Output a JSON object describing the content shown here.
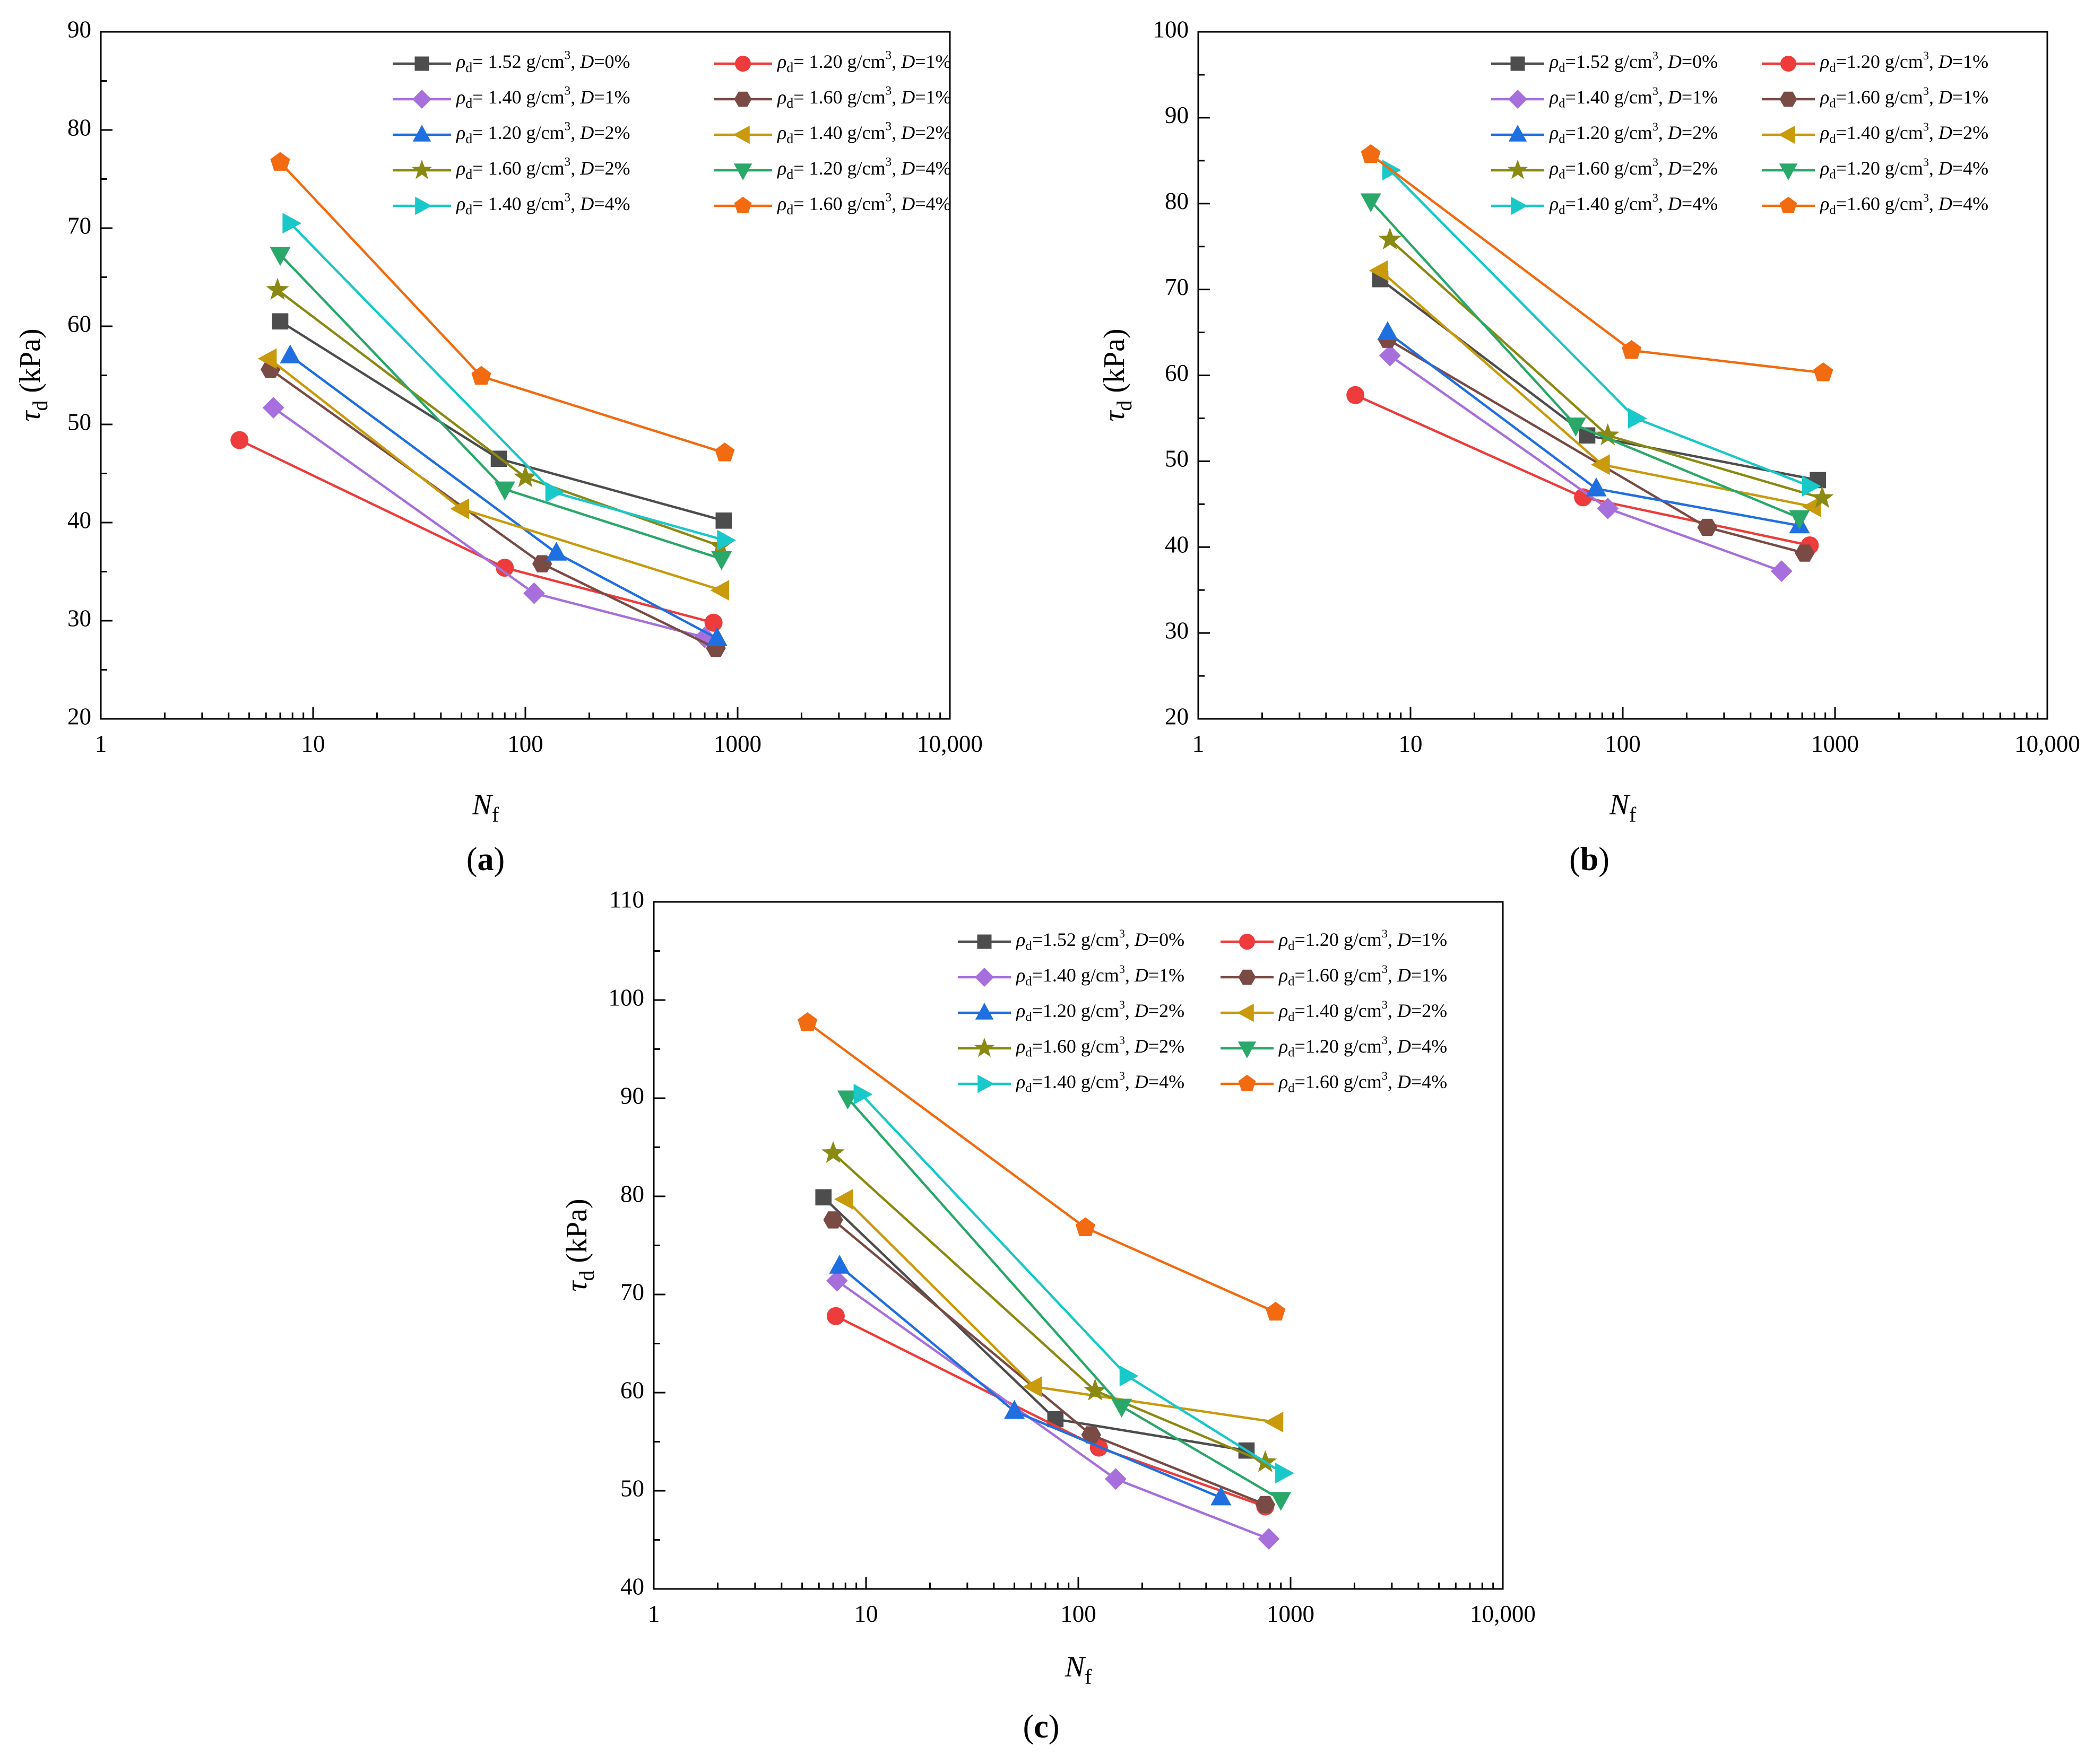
{
  "figure": {
    "legend_labels": [
      "ρd= 1.52 g/cm3, D=0%",
      "ρd= 1.20 g/cm3, D=1%",
      "ρd= 1.40 g/cm3, D=1%",
      "ρd= 1.60 g/cm3, D=1%",
      "ρd= 1.20 g/cm3, D=2%",
      "ρd= 1.40 g/cm3, D=2%",
      "ρd= 1.60 g/cm3, D=2%",
      "ρd= 1.20 g/cm3, D=4%",
      "ρd= 1.40 g/cm3, D=4%",
      "ρd= 1.60 g/cm3, D=4%"
    ]
  },
  "chart_data": [
    {
      "type": "scatter",
      "panel": "a",
      "panel_label_letter": "a",
      "xscale": "log",
      "xlim": [
        1,
        10000
      ],
      "ylim": [
        20,
        90
      ],
      "xticks": [
        1,
        10,
        100,
        1000,
        10000
      ],
      "xtick_labels": [
        "1",
        "10",
        "100",
        "1000",
        "10,000"
      ],
      "yticks": [
        20,
        30,
        40,
        50,
        60,
        70,
        80,
        90
      ],
      "ylabel": "τd (kPa)",
      "xlabel": "Nf",
      "legend_position": "top-right",
      "series": [
        {
          "name": "ρd= 1.52 g/cm3, D=0%",
          "rho": "1.52",
          "D": "0%",
          "color": "#4d4d4d",
          "marker": "square",
          "x": [
            7,
            75,
            860
          ],
          "y": [
            60.5,
            46.5,
            40.2
          ]
        },
        {
          "name": "ρd= 1.20 g/cm3, D=1%",
          "rho": "1.20",
          "D": "1%",
          "color": "#ee3b3b",
          "marker": "circle",
          "x": [
            4.5,
            80,
            770
          ],
          "y": [
            48.4,
            35.4,
            29.8
          ]
        },
        {
          "name": "ρd= 1.40 g/cm3, D=1%",
          "rho": "1.40",
          "D": "1%",
          "color": "#a66fdc",
          "marker": "diamond",
          "x": [
            6.5,
            110,
            700
          ],
          "y": [
            51.7,
            32.8,
            28.3
          ]
        },
        {
          "name": "ρd= 1.60 g/cm3, D=1%",
          "rho": "1.60",
          "D": "1%",
          "color": "#7a4a45",
          "marker": "hexagon",
          "x": [
            6.3,
            120,
            790
          ],
          "y": [
            55.6,
            35.8,
            27.2
          ]
        },
        {
          "name": "ρd= 1.20 g/cm3, D=2%",
          "rho": "1.20",
          "D": "2%",
          "color": "#1f6fe0",
          "marker": "triangle-up",
          "x": [
            7.8,
            140,
            800
          ],
          "y": [
            57.0,
            36.9,
            28.2
          ]
        },
        {
          "name": "ρd= 1.40 g/cm3, D=2%",
          "rho": "1.40",
          "D": "2%",
          "color": "#c89a0c",
          "marker": "triangle-left",
          "x": [
            6.2,
            50,
            840
          ],
          "y": [
            56.7,
            41.4,
            33.1
          ]
        },
        {
          "name": "ρd= 1.60 g/cm3, D=2%",
          "rho": "1.60",
          "D": "2%",
          "color": "#8a8a13",
          "marker": "star",
          "x": [
            6.8,
            100,
            830
          ],
          "y": [
            63.7,
            44.6,
            37.6
          ]
        },
        {
          "name": "ρd= 1.20 g/cm3, D=4%",
          "rho": "1.20",
          "D": "4%",
          "color": "#2aa86a",
          "marker": "triangle-down",
          "x": [
            7.0,
            80,
            840
          ],
          "y": [
            67.3,
            43.4,
            36.3
          ]
        },
        {
          "name": "ρd= 1.40 g/cm3, D=4%",
          "rho": "1.40",
          "D": "4%",
          "color": "#19c8c8",
          "marker": "triangle-right",
          "x": [
            7.8,
            135,
            870
          ],
          "y": [
            70.5,
            43.1,
            38.2
          ]
        },
        {
          "name": "ρd= 1.60 g/cm3, D=4%",
          "rho": "1.60",
          "D": "4%",
          "color": "#f26b10",
          "marker": "pentagon",
          "x": [
            7.0,
            62,
            870
          ],
          "y": [
            76.7,
            54.9,
            47.1
          ]
        }
      ]
    },
    {
      "type": "scatter",
      "panel": "b",
      "panel_label_letter": "b",
      "xscale": "log",
      "xlim": [
        1,
        10000
      ],
      "ylim": [
        20,
        100
      ],
      "xticks": [
        1,
        10,
        100,
        1000,
        10000
      ],
      "xtick_labels": [
        "1",
        "10",
        "100",
        "1000",
        "10,000"
      ],
      "yticks": [
        20,
        30,
        40,
        50,
        60,
        70,
        80,
        90,
        100
      ],
      "ylabel": "τd (kPa)",
      "xlabel": "Nf",
      "legend_position": "top-right",
      "series": [
        {
          "name": "ρd=1.52 g/cm3, D=0%",
          "rho": "1.52",
          "D": "0%",
          "color": "#4d4d4d",
          "marker": "square",
          "x": [
            7.2,
            68,
            830
          ],
          "y": [
            71.2,
            53.0,
            47.8
          ]
        },
        {
          "name": "ρd=1.20 g/cm3, D=1%",
          "rho": "1.20",
          "D": "1%",
          "color": "#ee3b3b",
          "marker": "circle",
          "x": [
            5.5,
            65,
            760
          ],
          "y": [
            57.7,
            45.8,
            40.2
          ]
        },
        {
          "name": "ρd=1.40 g/cm3, D=1%",
          "rho": "1.40",
          "D": "1%",
          "color": "#a66fdc",
          "marker": "diamond",
          "x": [
            8.0,
            85,
            560
          ],
          "y": [
            62.3,
            44.5,
            37.2
          ]
        },
        {
          "name": "ρd=1.60 g/cm3, D=1%",
          "rho": "1.60",
          "D": "1%",
          "color": "#7a4a45",
          "marker": "hexagon",
          "x": [
            7.8,
            250,
            720
          ],
          "y": [
            64.2,
            42.3,
            39.3
          ]
        },
        {
          "name": "ρd=1.20 g/cm3, D=2%",
          "rho": "1.20",
          "D": "2%",
          "color": "#1f6fe0",
          "marker": "triangle-up",
          "x": [
            7.8,
            75,
            680
          ],
          "y": [
            65.0,
            46.8,
            42.5
          ]
        },
        {
          "name": "ρd=1.40 g/cm3, D=2%",
          "rho": "1.40",
          "D": "2%",
          "color": "#c89a0c",
          "marker": "triangle-left",
          "x": [
            7.2,
            80,
            790
          ],
          "y": [
            72.2,
            49.6,
            44.7
          ]
        },
        {
          "name": "ρd=1.60 g/cm3, D=2%",
          "rho": "1.60",
          "D": "2%",
          "color": "#8a8a13",
          "marker": "star",
          "x": [
            8.0,
            85,
            870
          ],
          "y": [
            75.8,
            53.0,
            45.7
          ]
        },
        {
          "name": "ρd=1.20 g/cm3, D=4%",
          "rho": "1.20",
          "D": "4%",
          "color": "#2aa86a",
          "marker": "triangle-down",
          "x": [
            6.5,
            60,
            680
          ],
          "y": [
            80.3,
            54.2,
            43.4
          ]
        },
        {
          "name": "ρd=1.40 g/cm3, D=4%",
          "rho": "1.40",
          "D": "4%",
          "color": "#19c8c8",
          "marker": "triangle-right",
          "x": [
            8.0,
            115,
            760
          ],
          "y": [
            83.9,
            55.0,
            47.1
          ]
        },
        {
          "name": "ρd=1.60 g/cm3, D=4%",
          "rho": "1.60",
          "D": "4%",
          "color": "#f26b10",
          "marker": "pentagon",
          "x": [
            6.5,
            110,
            880
          ],
          "y": [
            85.7,
            62.9,
            60.3
          ]
        }
      ]
    },
    {
      "type": "scatter",
      "panel": "c",
      "panel_label_letter": "c",
      "xscale": "log",
      "xlim": [
        1,
        10000
      ],
      "ylim": [
        40,
        110
      ],
      "xticks": [
        1,
        10,
        100,
        1000,
        10000
      ],
      "xtick_labels": [
        "1",
        "10",
        "100",
        "1000",
        "10,000"
      ],
      "yticks": [
        40,
        50,
        60,
        70,
        80,
        90,
        100,
        110
      ],
      "ylabel": "τd (kPa)",
      "xlabel": "Nf",
      "legend_position": "top-right",
      "series": [
        {
          "name": "ρd=1.52 g/cm3, D=0%",
          "rho": "1.52",
          "D": "0%",
          "color": "#4d4d4d",
          "marker": "square",
          "x": [
            6.3,
            78,
            620
          ],
          "y": [
            79.9,
            57.3,
            54.1
          ]
        },
        {
          "name": "ρd=1.20 g/cm3, D=1%",
          "rho": "1.20",
          "D": "1%",
          "color": "#ee3b3b",
          "marker": "circle",
          "x": [
            7.2,
            125,
            760
          ],
          "y": [
            67.8,
            54.4,
            48.4
          ]
        },
        {
          "name": "ρd=1.40 g/cm3, D=1%",
          "rho": "1.40",
          "D": "1%",
          "color": "#a66fdc",
          "marker": "diamond",
          "x": [
            7.3,
            150,
            790
          ],
          "y": [
            71.4,
            51.2,
            45.1
          ]
        },
        {
          "name": "ρd=1.60 g/cm3, D=1%",
          "rho": "1.60",
          "D": "1%",
          "color": "#7a4a45",
          "marker": "hexagon",
          "x": [
            7.0,
            115,
            760
          ],
          "y": [
            77.6,
            55.7,
            48.6
          ]
        },
        {
          "name": "ρd=1.20 g/cm3, D=2%",
          "rho": "1.20",
          "D": "2%",
          "color": "#1f6fe0",
          "marker": "triangle-up",
          "x": [
            7.5,
            50,
            470
          ],
          "y": [
            72.9,
            58.1,
            49.3
          ]
        },
        {
          "name": "ρd=1.40 g/cm3, D=2%",
          "rho": "1.40",
          "D": "2%",
          "color": "#c89a0c",
          "marker": "triangle-left",
          "x": [
            8.0,
            62,
            850
          ],
          "y": [
            79.7,
            60.6,
            57.0
          ]
        },
        {
          "name": "ρd=1.60 g/cm3, D=2%",
          "rho": "1.60",
          "D": "2%",
          "color": "#8a8a13",
          "marker": "star",
          "x": [
            7.0,
            120,
            760
          ],
          "y": [
            84.4,
            60.2,
            52.9
          ]
        },
        {
          "name": "ρd=1.20 g/cm3, D=4%",
          "rho": "1.20",
          "D": "4%",
          "color": "#2aa86a",
          "marker": "triangle-down",
          "x": [
            8.2,
            160,
            900
          ],
          "y": [
            90.0,
            58.6,
            49.1
          ]
        },
        {
          "name": "ρd=1.40 g/cm3, D=4%",
          "rho": "1.40",
          "D": "4%",
          "color": "#19c8c8",
          "marker": "triangle-right",
          "x": [
            9.5,
            170,
            920
          ],
          "y": [
            90.4,
            61.7,
            51.8
          ]
        },
        {
          "name": "ρd=1.60 g/cm3, D=4%",
          "rho": "1.60",
          "D": "4%",
          "color": "#f26b10",
          "marker": "pentagon",
          "x": [
            5.3,
            108,
            850
          ],
          "y": [
            97.7,
            76.8,
            68.2
          ]
        }
      ]
    }
  ]
}
